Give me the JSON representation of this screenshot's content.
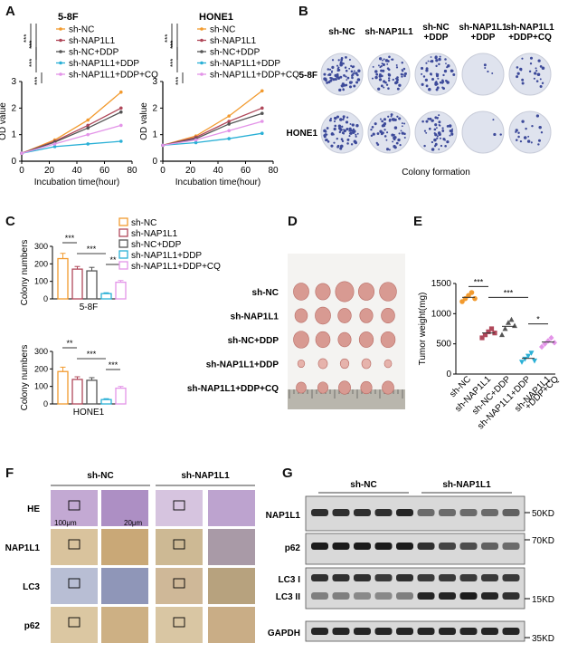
{
  "panels": {
    "A": "A",
    "B": "B",
    "C": "C",
    "D": "D",
    "E": "E",
    "F": "F",
    "G": "G"
  },
  "legend_colors": [
    "#f29a2e",
    "#b0485a",
    "#555555",
    "#2ab0d6",
    "#e394e8"
  ],
  "panelA": {
    "ylabel": "OD value",
    "xlabel": "Incubation time(hour)",
    "sig": [
      "***",
      "***",
      "***",
      "***"
    ],
    "legend": [
      "sh-NC",
      "sh-NAP1L1",
      "sh-NC+DDP",
      "sh-NAP1L1+DDP",
      "sh-NAP1L1+DDP+CQ"
    ]
  },
  "chart_data": [
    {
      "type": "line",
      "title": "5-8F",
      "xlabel": "Incubation time(hour)",
      "ylabel": "OD value",
      "x": [
        0,
        24,
        48,
        72
      ],
      "xlim": [
        0,
        80
      ],
      "ylim": [
        0,
        3
      ],
      "xticks": [
        "0",
        "20",
        "40",
        "60",
        "80"
      ],
      "yticks": [
        "0",
        "1",
        "2",
        "3"
      ],
      "series": [
        {
          "name": "sh-NC",
          "values": [
            0.3,
            0.8,
            1.55,
            2.6
          ]
        },
        {
          "name": "sh-NAP1L1",
          "values": [
            0.3,
            0.75,
            1.35,
            2.0
          ]
        },
        {
          "name": "sh-NC+DDP",
          "values": [
            0.3,
            0.72,
            1.25,
            1.85
          ]
        },
        {
          "name": "sh-NAP1L1+DDP",
          "values": [
            0.3,
            0.55,
            0.65,
            0.75
          ]
        },
        {
          "name": "sh-NAP1L1+DDP+CQ",
          "values": [
            0.3,
            0.65,
            1.0,
            1.35
          ]
        }
      ]
    },
    {
      "type": "line",
      "title": "HONE1",
      "xlabel": "Incubation time(hour)",
      "ylabel": "OD value",
      "x": [
        0,
        24,
        48,
        72
      ],
      "xlim": [
        0,
        80
      ],
      "ylim": [
        0,
        3
      ],
      "xticks": [
        "0",
        "20",
        "40",
        "60",
        "80"
      ],
      "yticks": [
        "0",
        "1",
        "2",
        "3"
      ],
      "series": [
        {
          "name": "sh-NC",
          "values": [
            0.6,
            0.95,
            1.7,
            2.65
          ]
        },
        {
          "name": "sh-NAP1L1",
          "values": [
            0.6,
            0.9,
            1.5,
            2.0
          ]
        },
        {
          "name": "sh-NC+DDP",
          "values": [
            0.6,
            0.85,
            1.4,
            1.8
          ]
        },
        {
          "name": "sh-NAP1L1+DDP",
          "values": [
            0.6,
            0.7,
            0.85,
            1.05
          ]
        },
        {
          "name": "sh-NAP1L1+DDP+CQ",
          "values": [
            0.6,
            0.8,
            1.15,
            1.5
          ]
        }
      ]
    },
    {
      "type": "bar",
      "title": "5-8F",
      "ylabel": "Colony numbers",
      "ylim": [
        0,
        300
      ],
      "yticks": [
        "0",
        "100",
        "200",
        "300"
      ],
      "categories": [
        "sh-NC",
        "sh-NAP1L1",
        "sh-NC+DDP",
        "sh-NAP1L1+DDP",
        "sh-NAP1L1+DDP+CQ"
      ],
      "values": [
        230,
        170,
        160,
        30,
        95
      ],
      "errors": [
        30,
        15,
        20,
        5,
        10
      ],
      "sig": [
        "***",
        "***",
        "**"
      ]
    },
    {
      "type": "bar",
      "title": "HONE1",
      "ylabel": "Colony numbers",
      "ylim": [
        0,
        300
      ],
      "yticks": [
        "0",
        "100",
        "200",
        "300"
      ],
      "categories": [
        "sh-NC",
        "sh-NAP1L1",
        "sh-NC+DDP",
        "sh-NAP1L1+DDP",
        "sh-NAP1L1+DDP+CQ"
      ],
      "values": [
        185,
        140,
        135,
        25,
        90
      ],
      "errors": [
        25,
        15,
        15,
        5,
        10
      ],
      "sig": [
        "**",
        "***",
        "***"
      ]
    },
    {
      "type": "scatter",
      "ylabel": "Tumor weight(mg)",
      "ylim": [
        0,
        1500
      ],
      "yticks": [
        "0",
        "500",
        "1000",
        "1500"
      ],
      "categories": [
        "sh-NC",
        "sh-NAP1L1",
        "sh-NC+DDP",
        "sh-NAP1L1+DDP",
        "sh-NAP1L1\n+DDP+CQ"
      ],
      "points": [
        [
          1200,
          1250,
          1300,
          1350,
          1250
        ],
        [
          600,
          650,
          700,
          750,
          680
        ],
        [
          650,
          750,
          850,
          900,
          800
        ],
        [
          200,
          250,
          300,
          350,
          220
        ],
        [
          450,
          500,
          550,
          600,
          520
        ]
      ],
      "means": [
        1270,
        680,
        790,
        260,
        530
      ],
      "sig": [
        "***",
        "***",
        "*"
      ]
    }
  ],
  "panelB": {
    "cols": [
      "sh-NC",
      "sh-NAP1L1",
      "sh-NC\n+DDP",
      "sh-NAP1L1\n+DDP",
      "sh-NAP1L1\n+DDP+CQ"
    ],
    "rows": [
      "5-8F",
      "HONE1"
    ],
    "caption": "Colony formation",
    "density": [
      [
        80,
        60,
        55,
        4,
        25
      ],
      [
        70,
        55,
        50,
        3,
        18
      ]
    ]
  },
  "panelC": {
    "legend": [
      "sh-NC",
      "sh-NAP1L1",
      "sh-NC+DDP",
      "sh-NAP1L1+DDP",
      "sh-NAP1L1+DDP+CQ"
    ]
  },
  "panelD": {
    "rows": [
      "sh-NC",
      "sh-NAP1L1",
      "sh-NC+DDP",
      "sh-NAP1L1+DDP",
      "sh-NAP1L1+DDP+CQ"
    ]
  },
  "panelF": {
    "groups": [
      "sh-NC",
      "sh-NAP1L1"
    ],
    "rows": [
      "HE",
      "NAP1L1",
      "LC3",
      "p62"
    ],
    "scale1": "100μm",
    "scale2": "20μm"
  },
  "panelG": {
    "groups": [
      "sh-NC",
      "sh-NAP1L1"
    ],
    "rows": [
      "NAP1L1",
      "p62",
      "LC3 I",
      "LC3 II",
      "GAPDH"
    ],
    "markers": [
      "50KD",
      "70KD",
      "15KD",
      "35KD"
    ]
  }
}
